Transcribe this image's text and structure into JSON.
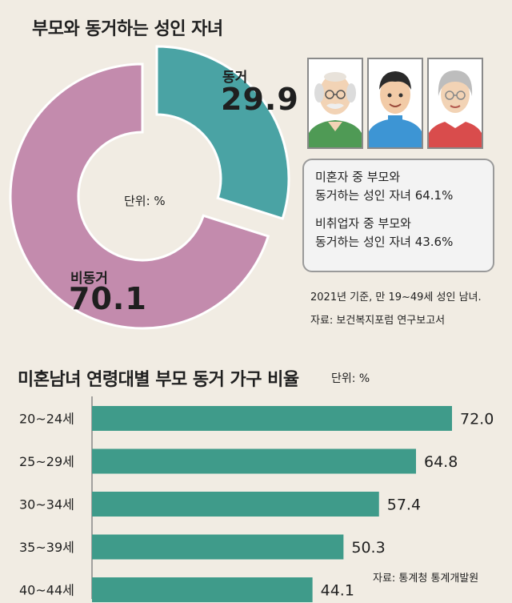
{
  "donut": {
    "title": "부모와 동거하는 성인 자녀",
    "unit": "단위: %",
    "chart_data": {
      "type": "pie",
      "categories": [
        "동거",
        "비동거"
      ],
      "values": [
        29.9,
        70.1
      ],
      "colors": [
        "#4aa3a4",
        "#c38bad"
      ]
    }
  },
  "info": {
    "line1a": "미혼자 중 부모와",
    "line1b": "동거하는 성인 자녀 64.1%",
    "line2a": "비취업자 중 부모와",
    "line2b": "동거하는 성인 자녀 43.6%"
  },
  "source1": {
    "line1": "2021년 기준, 만 19~49세 성인 남녀.",
    "line2": "자료: 보건복지포럼 연구보고서"
  },
  "portraits": [
    "elderly-man-icon",
    "young-man-icon",
    "elderly-woman-icon"
  ],
  "bars": {
    "title": "미혼남녀 연령대별 부모 동거 가구 비율",
    "unit": "단위: %",
    "source": "자료: 통계청 통계개발원",
    "chart_data": {
      "type": "bar",
      "orientation": "horizontal",
      "categories": [
        "20~24세",
        "25~29세",
        "30~34세",
        "35~39세",
        "40~44세"
      ],
      "values": [
        72.0,
        64.8,
        57.4,
        50.3,
        44.1
      ],
      "value_labels": [
        "72.0",
        "64.8",
        "57.4",
        "50.3",
        "44.1"
      ],
      "color": "#3f9b8a"
    }
  }
}
